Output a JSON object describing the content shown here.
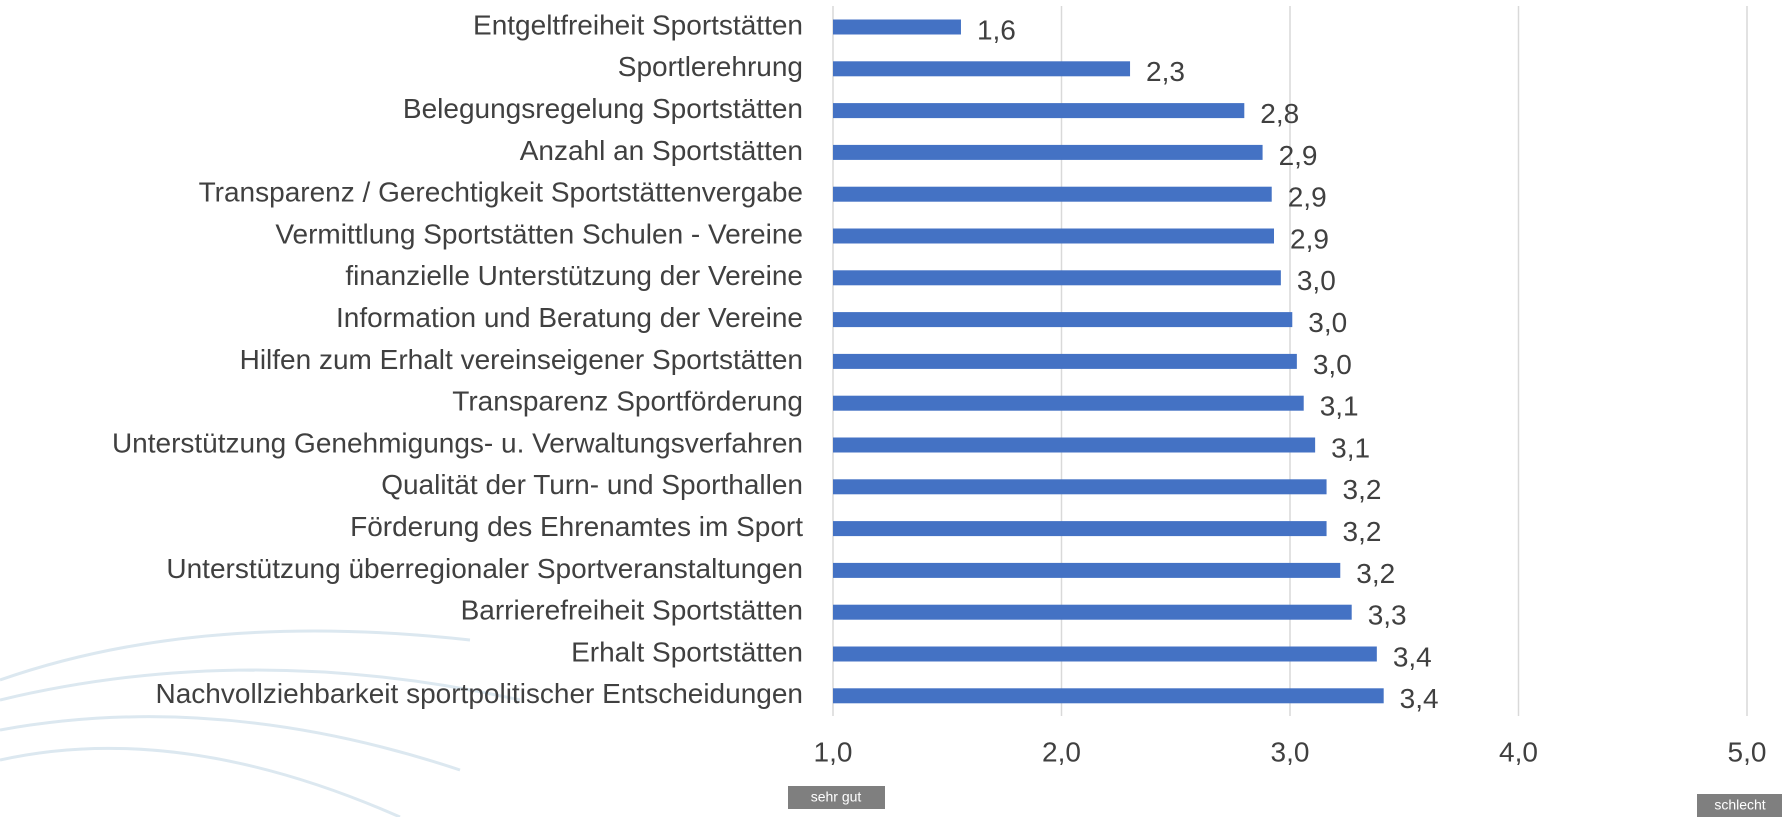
{
  "chart_data": {
    "type": "barh",
    "categories": [
      "Entgeltfreiheit Sportstätten",
      "Sportlerehrung",
      "Belegungsregelung Sportstätten",
      "Anzahl an Sportstätten",
      "Transparenz / Gerechtigkeit Sportstättenvergabe",
      "Vermittlung Sportstätten Schulen - Vereine",
      "finanzielle Unterstützung der Vereine",
      "Information und Beratung der Vereine",
      "Hilfen zum Erhalt vereinseigener Sportstätten",
      "Transparenz Sportförderung",
      "Unterstützung Genehmigungs- u. Verwaltungsverfahren",
      "Qualität der Turn- und Sporthallen",
      "Förderung des Ehrenamtes im Sport",
      "Unterstützung überregionaler Sportveranstaltungen",
      "Barrierefreiheit Sportstätten",
      "Erhalt Sportstätten",
      "Nachvollziehbarkeit sportpolitischer Entscheidungen"
    ],
    "values": [
      1.56,
      2.3,
      2.8,
      2.88,
      2.92,
      2.93,
      2.96,
      3.01,
      3.03,
      3.06,
      3.11,
      3.16,
      3.16,
      3.22,
      3.27,
      3.38,
      3.41
    ],
    "value_labels": [
      "1,6",
      "2,3",
      "2,8",
      "2,9",
      "2,9",
      "2,9",
      "3,0",
      "3,0",
      "3,0",
      "3,1",
      "3,1",
      "3,2",
      "3,2",
      "3,2",
      "3,3",
      "3,4",
      "3,4"
    ],
    "color": "#4472c4",
    "xlim": [
      1,
      5
    ],
    "xticks": [
      {
        "value": 1,
        "label": "1,0"
      },
      {
        "value": 2,
        "label": "2,0"
      },
      {
        "value": 3,
        "label": "3,0"
      },
      {
        "value": 4,
        "label": "4,0"
      },
      {
        "value": 5,
        "label": "5,0"
      }
    ],
    "grid": true,
    "low_label": "sehr gut",
    "high_label": "schlecht"
  }
}
